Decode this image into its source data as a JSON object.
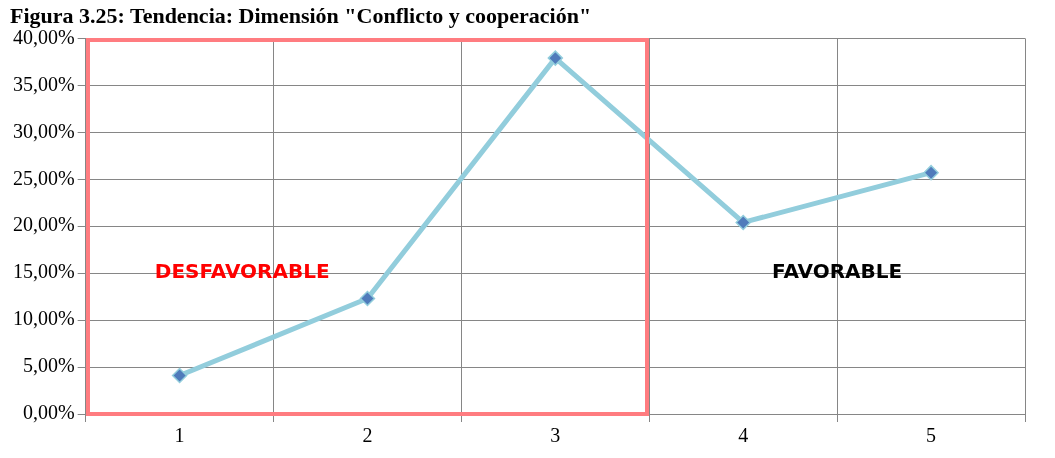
{
  "chart_data": {
    "type": "line",
    "title": "Figura 3.25: Tendencia: Dimensión \"Conflicto y cooperación\"",
    "categories": [
      "1",
      "2",
      "3",
      "4",
      "5"
    ],
    "series": [
      {
        "color": "#92cddc",
        "values": [
          4.1,
          12.3,
          37.9,
          20.4,
          25.7
        ]
      }
    ],
    "marker": "diamond",
    "ylim": [
      0,
      40
    ],
    "yticks": [
      {
        "value": 0,
        "label": "0,00%"
      },
      {
        "value": 5,
        "label": "5,00%"
      },
      {
        "value": 10,
        "label": "10,00%"
      },
      {
        "value": 15,
        "label": "15,00%"
      },
      {
        "value": 20,
        "label": "20,00%"
      },
      {
        "value": 25,
        "label": "25,00%"
      },
      {
        "value": 30,
        "label": "30,00%"
      },
      {
        "value": 35,
        "label": "35,00%"
      },
      {
        "value": 40,
        "label": "40,00%"
      }
    ],
    "grid": true,
    "annotations": [
      "DESFAVORABLE",
      "FAVORABLE"
    ]
  }
}
